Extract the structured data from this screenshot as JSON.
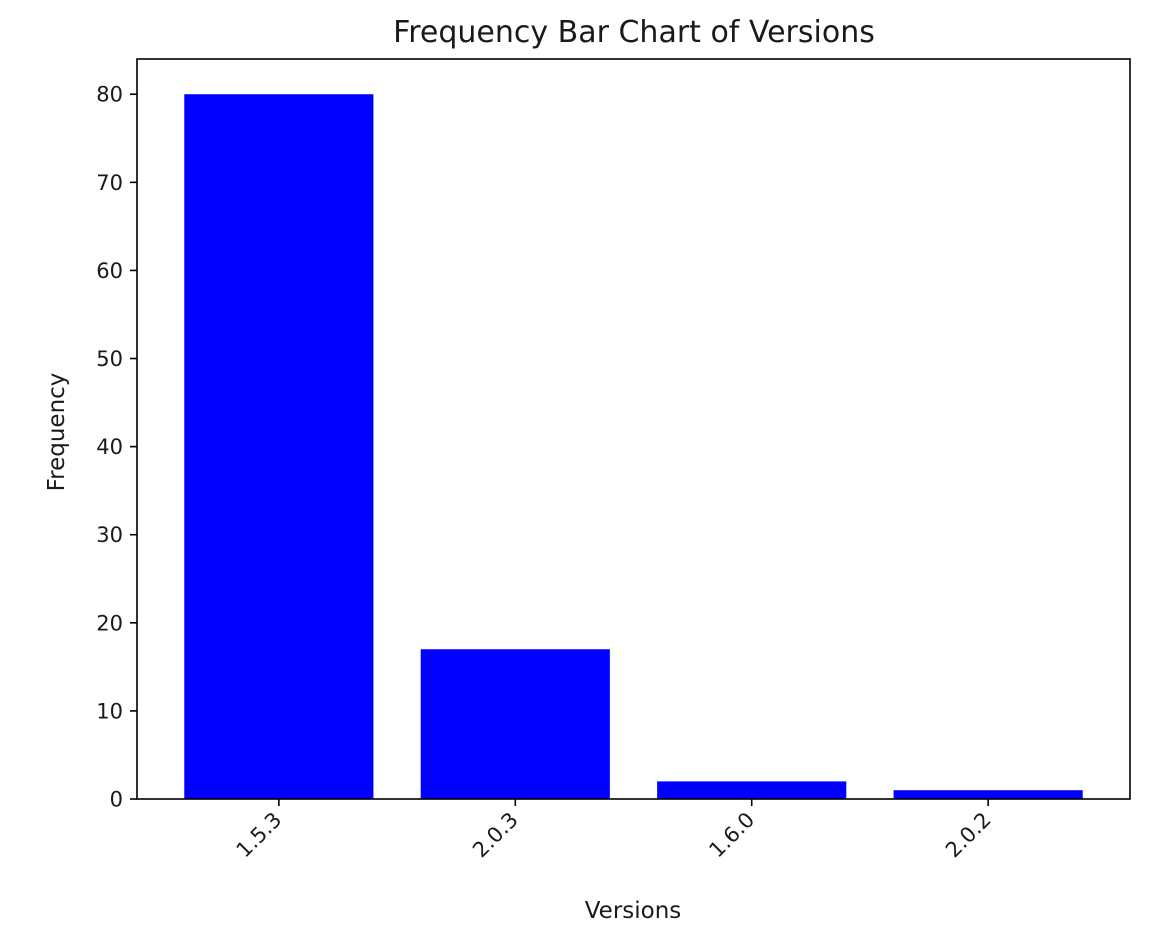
{
  "chart_data": {
    "type": "bar",
    "title": "Frequency Bar Chart of Versions",
    "xlabel": "Versions",
    "ylabel": "Frequency",
    "categories": [
      "1.5.3",
      "2.0.3",
      "1.6.0",
      "2.0.2"
    ],
    "values": [
      80,
      17,
      2,
      1
    ],
    "ylim": [
      0,
      84
    ],
    "yticks": [
      0,
      10,
      20,
      30,
      40,
      50,
      60,
      70,
      80
    ],
    "bar_color": "#0000ff",
    "grid": false,
    "legend": "none",
    "xtick_rotation": 45
  }
}
